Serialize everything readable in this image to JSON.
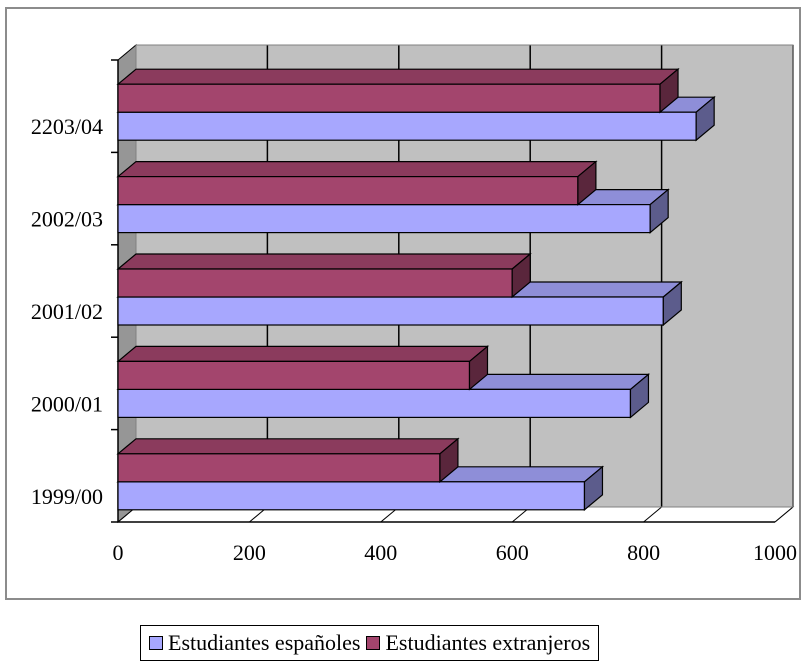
{
  "chart_data": {
    "type": "bar",
    "orientation": "horizontal",
    "categories": [
      "1999/00",
      "2000/01",
      "2001/02",
      "2002/03",
      "2203/04"
    ],
    "series": [
      {
        "name": "Estudiantes españoles",
        "values": [
          710,
          780,
          830,
          810,
          880
        ],
        "color": "#a7a7fe"
      },
      {
        "name": "Estudiantes extranjeros",
        "values": [
          490,
          535,
          600,
          700,
          825
        ],
        "color": "#a3456d"
      }
    ],
    "xlim": [
      0,
      1000
    ],
    "xticks": [
      "0",
      "200",
      "400",
      "600",
      "800",
      "1000"
    ],
    "grid": true,
    "three_d": true,
    "legend_position": "bottom",
    "colors": {
      "wall": "#c0c0c0",
      "side_wall": "#969696",
      "gridline": "#000000"
    }
  }
}
